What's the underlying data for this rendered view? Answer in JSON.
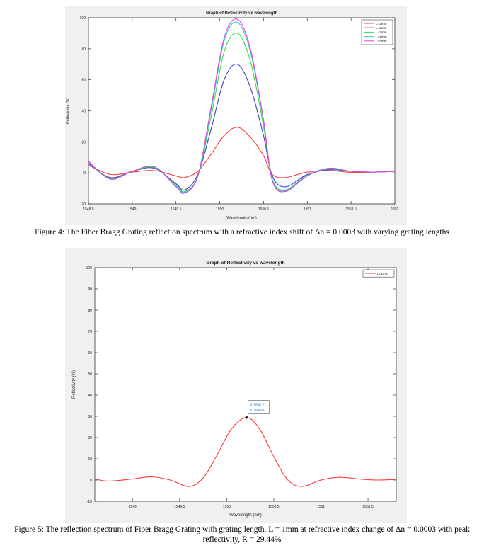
{
  "figure4": {
    "caption": "Figure 4: The Fiber Bragg Grating reflection spectrum with a refractive index shift of Δn = 0.0003 with varying grating lengths"
  },
  "figure5": {
    "caption": "Figure 5: The reflection spectrum of Fiber Bragg Grating with grating length, L = 1mm at refractive index change of Δn = 0.0003 with peak reflectivity, R = 29.44%",
    "datatip": {
      "x_label": "X 1550.21",
      "y_label": "Y 29.4391"
    }
  },
  "chart_data": [
    {
      "type": "line",
      "title": "Graph of Reflectivity vs wavelength",
      "xlabel": "Wavelength (nm)",
      "ylabel": "Reflectivity (%)",
      "xlim": [
        1548.5,
        1552
      ],
      "ylim": [
        -20,
        100
      ],
      "xticks": [
        1548.5,
        1549,
        1549.5,
        1550,
        1550.5,
        1551,
        1551.5,
        1552
      ],
      "xtick_labels": [
        "1548.5",
        "1549",
        "1549.5",
        "1550",
        "1550.5",
        "1551",
        "1551.5",
        "1552"
      ],
      "yticks": [
        -20,
        0,
        20,
        40,
        60,
        80,
        100
      ],
      "ytick_labels": [
        "-20",
        "0",
        "20",
        "40",
        "60",
        "80",
        "100"
      ],
      "grid": false,
      "legend": "top-right",
      "series": [
        {
          "name": "L=1mm",
          "color": "#ff3b3b",
          "peak": 29.4,
          "x": [
            1548.5,
            1548.75,
            1549,
            1549.25,
            1549.5,
            1549.6,
            1549.75,
            1549.9,
            1550.05,
            1550.2,
            1550.35,
            1550.5,
            1550.6,
            1550.75,
            1551,
            1551.25,
            1551.5,
            1551.75,
            1552
          ],
          "y": [
            5,
            -1,
            0.5,
            1.5,
            -2,
            -3,
            1,
            12,
            24,
            29.4,
            23,
            11,
            -1,
            -3,
            0.5,
            1.5,
            0.3,
            0.5,
            1
          ]
        },
        {
          "name": "L=2mm",
          "color": "#3b3bd9",
          "peak": 70,
          "x": [
            1548.5,
            1548.75,
            1549,
            1549.25,
            1549.5,
            1549.6,
            1549.75,
            1549.9,
            1550.05,
            1550.2,
            1550.35,
            1550.5,
            1550.6,
            1550.75,
            1551,
            1551.25,
            1551.5,
            1551.75,
            1552
          ],
          "y": [
            6,
            -3,
            1,
            3,
            -7,
            -11,
            -1,
            28,
            60,
            70,
            55,
            24,
            -2,
            -9,
            -1,
            2,
            1,
            0.5,
            1
          ]
        },
        {
          "name": "L=3mm",
          "color": "#3fd93f",
          "peak": 90,
          "x": [
            1548.5,
            1548.75,
            1549,
            1549.25,
            1549.5,
            1549.6,
            1549.75,
            1549.9,
            1550.05,
            1550.2,
            1550.35,
            1550.5,
            1550.6,
            1550.75,
            1551,
            1551.25,
            1551.5,
            1551.75,
            1552
          ],
          "y": [
            7,
            -3.5,
            1,
            3.5,
            -8,
            -12,
            -2,
            36,
            78,
            90,
            72,
            30,
            -4,
            -11,
            -1.5,
            2.5,
            1,
            0.5,
            1
          ]
        },
        {
          "name": "L=4mm",
          "color": "#34c6c6",
          "peak": 97,
          "x": [
            1548.5,
            1548.75,
            1549,
            1549.25,
            1549.5,
            1549.6,
            1549.75,
            1549.9,
            1550.05,
            1550.2,
            1550.35,
            1550.5,
            1550.6,
            1550.75,
            1551,
            1551.25,
            1551.5,
            1551.75,
            1552
          ],
          "y": [
            7,
            -4,
            1,
            4,
            -8.5,
            -12.5,
            -2,
            40,
            85,
            97,
            78,
            33,
            -4.5,
            -11.5,
            -1.5,
            3,
            1,
            0.5,
            1
          ]
        },
        {
          "name": "L=5mm",
          "color": "#e043e0",
          "peak": 99,
          "x": [
            1548.5,
            1548.75,
            1549,
            1549.25,
            1549.5,
            1549.6,
            1549.75,
            1549.9,
            1550.05,
            1550.2,
            1550.35,
            1550.5,
            1550.6,
            1550.75,
            1551,
            1551.25,
            1551.5,
            1551.75,
            1552
          ],
          "y": [
            7.5,
            -4,
            1,
            4,
            -9,
            -13,
            -2,
            42,
            87,
            99,
            80,
            34,
            -5,
            -12,
            -2,
            3,
            1,
            0.5,
            1
          ]
        }
      ]
    },
    {
      "type": "line",
      "title": "Graph of Reflectivity vs wavelength",
      "xlabel": "Wavelength (nm)",
      "ylabel": "Reflectivity (%)",
      "xlim": [
        1548.6,
        1551.8
      ],
      "ylim": [
        -10,
        100
      ],
      "xticks": [
        1549,
        1549.5,
        1550,
        1550.5,
        1551,
        1551.5
      ],
      "xtick_labels": [
        "1549",
        "1549.5",
        "1550",
        "1550.5",
        "1551",
        "1551.5"
      ],
      "yticks": [
        -10,
        0,
        10,
        20,
        30,
        40,
        50,
        60,
        70,
        80,
        90,
        100
      ],
      "ytick_labels": [
        "-10",
        "0",
        "10",
        "20",
        "30",
        "40",
        "50",
        "60",
        "70",
        "80",
        "90",
        "100"
      ],
      "grid": false,
      "legend": "top-right",
      "series": [
        {
          "name": "L=1mm",
          "color": "#ff3b3b",
          "x": [
            1548.6,
            1548.75,
            1549,
            1549.2,
            1549.4,
            1549.6,
            1549.75,
            1549.9,
            1550.05,
            1550.21,
            1550.35,
            1550.5,
            1550.65,
            1550.8,
            1551,
            1551.2,
            1551.4,
            1551.6,
            1551.8
          ],
          "y": [
            0.5,
            -0.5,
            0.5,
            1.5,
            0,
            -3,
            1,
            12,
            24,
            29.44,
            24,
            11,
            0,
            -3,
            0,
            1.3,
            0.5,
            0,
            0.3
          ]
        }
      ],
      "annotations": [
        {
          "x": 1550.21,
          "y": 29.4391,
          "text": "X 1550.21 Y 29.4391"
        }
      ]
    }
  ]
}
